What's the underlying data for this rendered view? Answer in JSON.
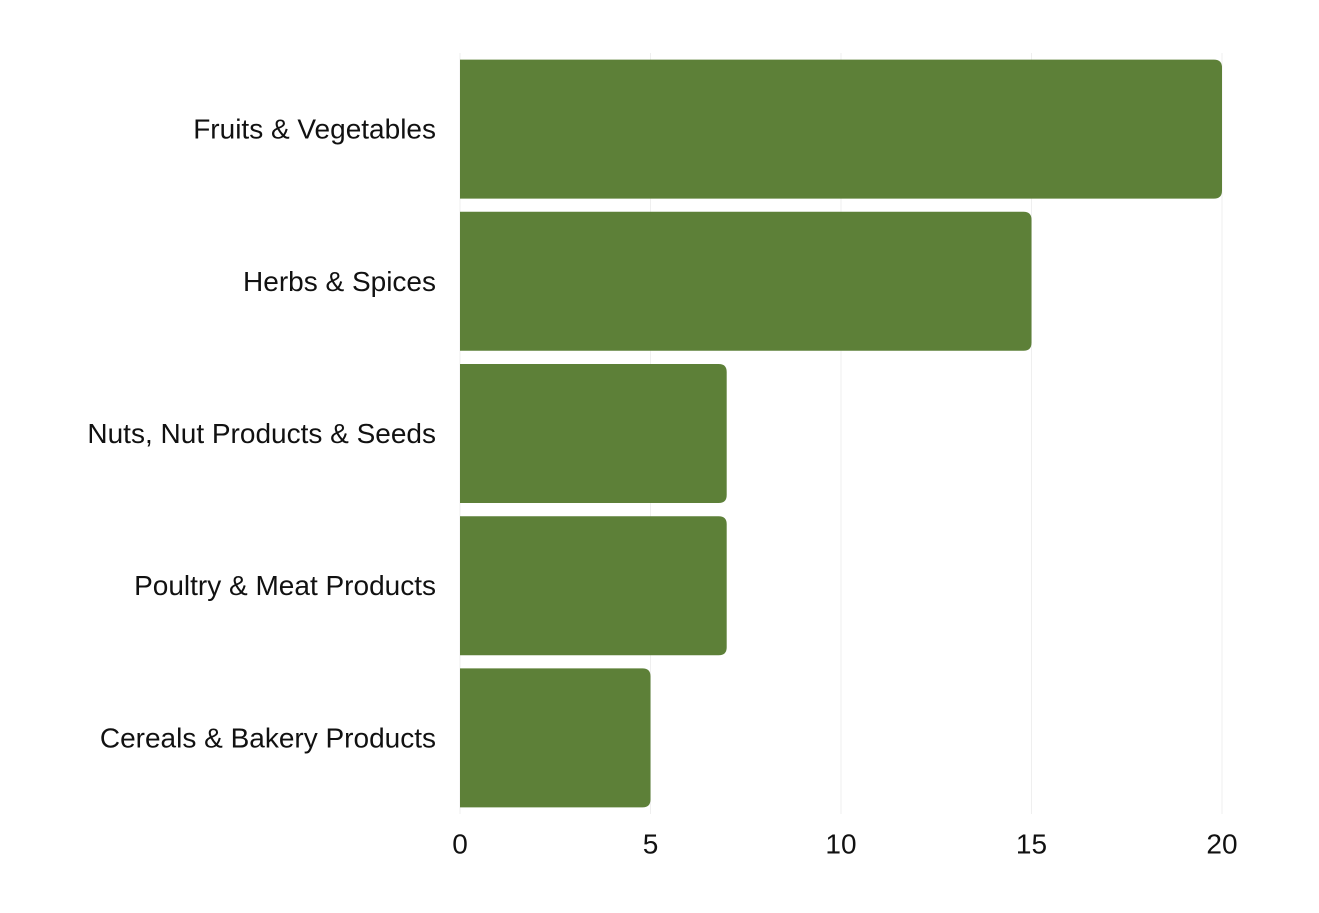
{
  "chart_data": {
    "type": "bar",
    "orientation": "horizontal",
    "categories": [
      "Fruits & Vegetables",
      "Herbs & Spices",
      "Nuts, Nut Products & Seeds",
      "Poultry & Meat Products",
      "Cereals & Bakery Products"
    ],
    "values": [
      20,
      15,
      7,
      7,
      5
    ],
    "title": "",
    "xlabel": "",
    "ylabel": "",
    "xlim": [
      0,
      20
    ],
    "xticks": [
      0,
      5,
      10,
      15,
      20
    ],
    "grid": true,
    "legend": "none",
    "bar_color": "#5d8038",
    "grid_color": "#efefef"
  }
}
